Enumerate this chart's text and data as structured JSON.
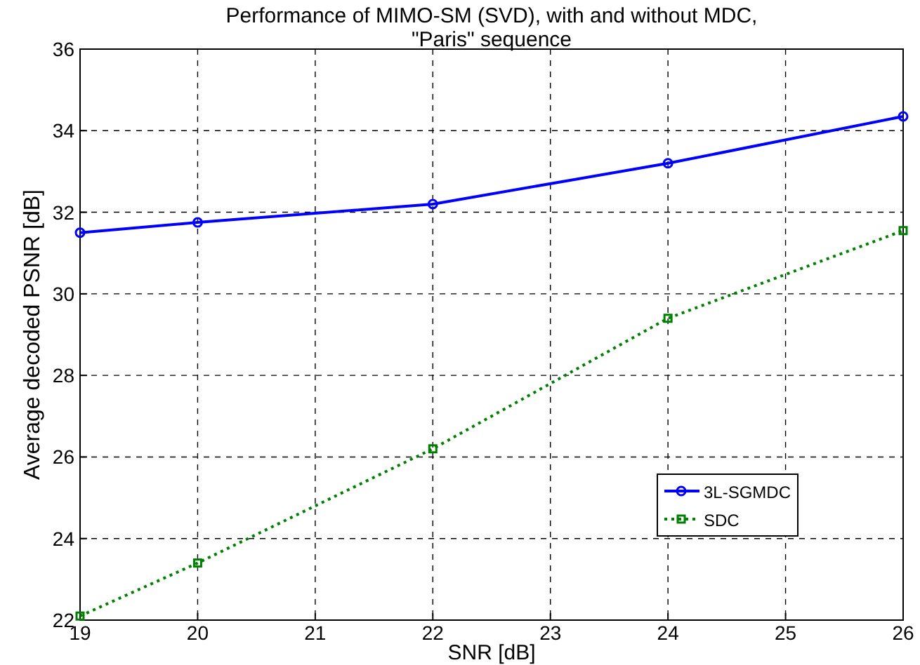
{
  "chart_data": {
    "type": "line",
    "title": "Performance of MIMO-SM (SVD), with and without MDC,\n\"Paris\" sequence",
    "xlabel": "SNR [dB]",
    "ylabel": "Average decoded PSNR [dB]",
    "x": [
      19,
      20,
      22,
      24,
      26
    ],
    "series": [
      {
        "name": "3L-SGMDC",
        "color": "#0000ff",
        "values": [
          31.5,
          31.75,
          32.2,
          33.2,
          34.35
        ],
        "marker": "circle",
        "line_style": "solid"
      },
      {
        "name": "SDC",
        "color": "#008000",
        "values": [
          22.1,
          23.4,
          26.2,
          29.4,
          31.55
        ],
        "marker": "square",
        "line_style": "dotted"
      }
    ],
    "xlim": [
      19,
      26
    ],
    "xticks": [
      19,
      20,
      21,
      22,
      23,
      24,
      25,
      26
    ],
    "ylim": [
      22,
      36
    ],
    "yticks": [
      22,
      24,
      26,
      28,
      30,
      32,
      34,
      36
    ],
    "grid": true,
    "legend": "right"
  }
}
